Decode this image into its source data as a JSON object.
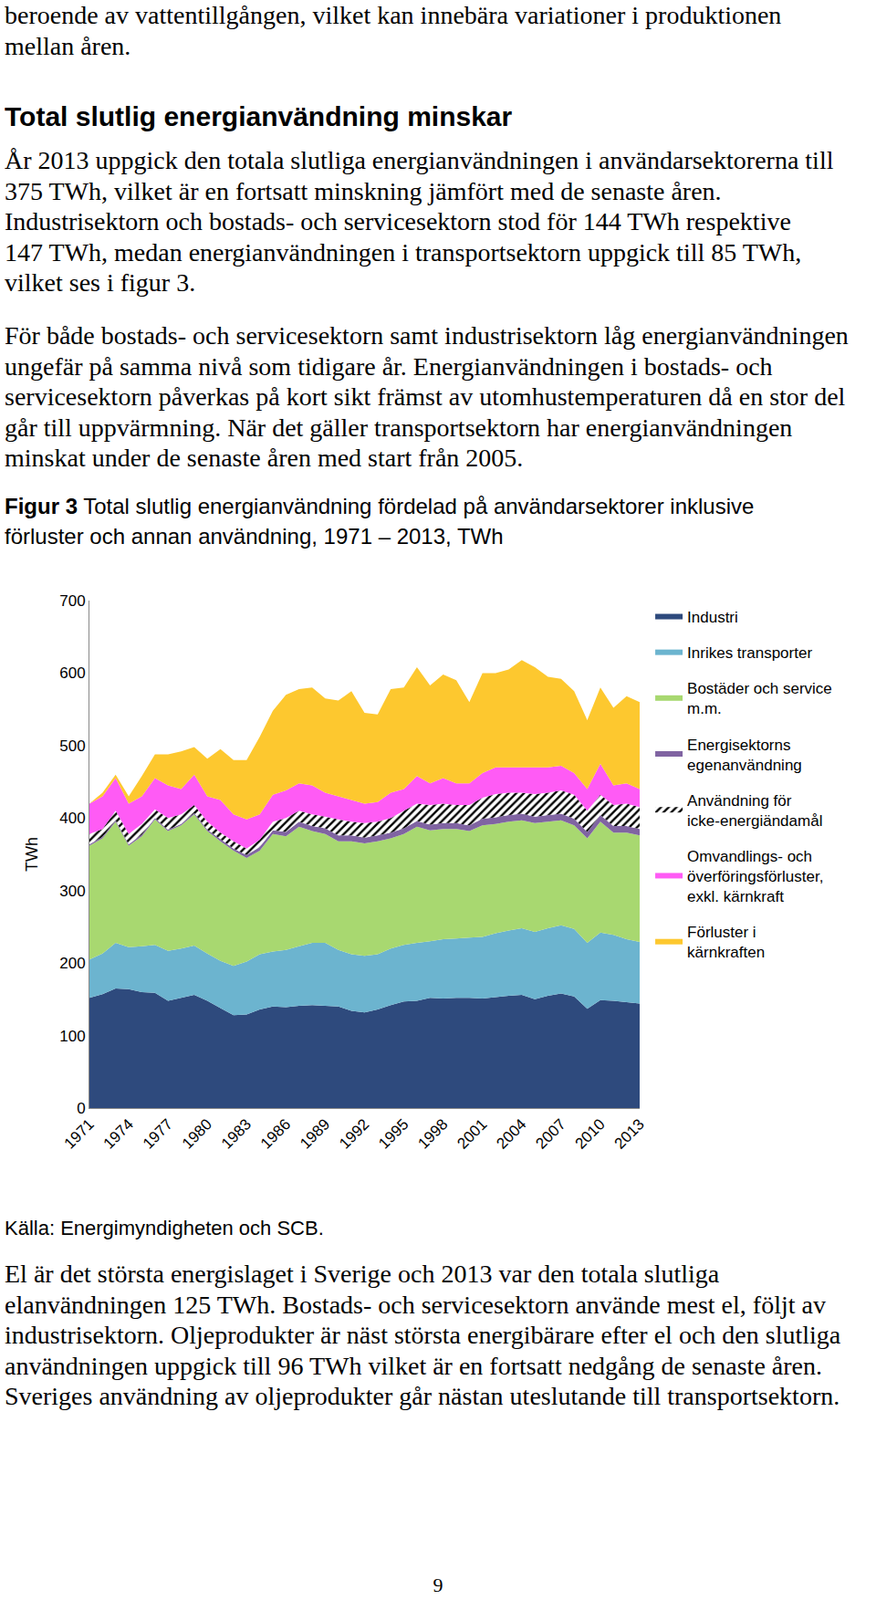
{
  "document": {
    "top_lines": [
      "beroende av vattentillgången, vilket kan innebära variationer i produktionen",
      "mellan åren."
    ],
    "heading": "Total slutlig energianvändning minskar",
    "paragraph_1": [
      "År 2013 uppgick den totala slutliga energianvändningen i användarsektorerna till",
      "375 TWh, vilket är en fortsatt minskning jämfört med de senaste åren.",
      "Industrisektorn och bostads- och servicesektorn stod för 144 TWh respektive",
      "147 TWh, medan energianvändningen i transportsektorn uppgick till 85 TWh,",
      "vilket ses i figur 3."
    ],
    "paragraph_2": [
      "För både bostads- och servicesektorn samt industrisektorn låg energianvändningen",
      "ungefär på samma nivå som tidigare år. Energianvändningen i bostads- och",
      "servicesektorn påverkas på kort sikt främst av utomhustemperaturen då en stor del",
      "går till uppvärmning. När det gäller transportsektorn har energianvändningen",
      "minskat under de senaste åren med start från 2005."
    ],
    "caption": {
      "label": "Figur 3",
      "lines": [
        "Total slutlig energianvändning fördelad på användarsektorer inklusive",
        "förluster och annan användning, 1971 – 2013, TWh"
      ]
    },
    "source": "Källa: Energimyndigheten och SCB.",
    "paragraph_3": [
      "El är det största energislaget i Sverige och 2013 var den totala slutliga",
      "elanvändningen 125 TWh. Bostads- och servicesektorn använde mest el, följt av",
      "industrisektorn. Oljeprodukter är näst största energibärare efter el och den slutliga",
      "användningen uppgick till 96 TWh vilket är en fortsatt nedgång de senaste åren.",
      "Sveriges användning av oljeprodukter går nästan uteslutande till transportsektorn."
    ],
    "page_number": "9"
  },
  "chart_data": {
    "type": "area",
    "stacked": true,
    "grid": false,
    "legend": "right",
    "ylabel": "TWh",
    "xlim": [
      1971,
      2013
    ],
    "xticks": [
      1971,
      1974,
      1977,
      1980,
      1983,
      1986,
      1989,
      1992,
      1995,
      1998,
      2001,
      2004,
      2007,
      2010,
      2013
    ],
    "ylim": [
      0,
      700
    ],
    "yticks": [
      0,
      100,
      200,
      300,
      400,
      500,
      600,
      700
    ],
    "x": [
      1971,
      1972,
      1973,
      1974,
      1975,
      1976,
      1977,
      1978,
      1979,
      1980,
      1981,
      1982,
      1983,
      1984,
      1985,
      1986,
      1987,
      1988,
      1989,
      1990,
      1991,
      1992,
      1993,
      1994,
      1995,
      1996,
      1997,
      1998,
      1999,
      2000,
      2001,
      2002,
      2003,
      2004,
      2005,
      2006,
      2007,
      2008,
      2009,
      2010,
      2011,
      2012,
      2013
    ],
    "series": [
      {
        "name": "Industri",
        "color": "#2e4a7d",
        "values": [
          152,
          157,
          165,
          164,
          160,
          159,
          148,
          152,
          156,
          148,
          138,
          128,
          129,
          136,
          140,
          139,
          141,
          142,
          141,
          140,
          134,
          132,
          136,
          142,
          147,
          148,
          152,
          151,
          152,
          152,
          151,
          153,
          155,
          156,
          150,
          155,
          158,
          154,
          137,
          149,
          148,
          146,
          144
        ]
      },
      {
        "name": "Inrikes transporter",
        "color": "#6cb4cf",
        "values": [
          53,
          56,
          63,
          58,
          63,
          66,
          69,
          68,
          68,
          65,
          65,
          68,
          73,
          76,
          76,
          79,
          82,
          86,
          87,
          78,
          78,
          78,
          76,
          78,
          78,
          80,
          78,
          82,
          82,
          83,
          85,
          88,
          90,
          92,
          93,
          93,
          94,
          93,
          91,
          93,
          91,
          87,
          85
        ]
      },
      {
        "name": "Bostäder och service m.m.",
        "color": "#a8d870",
        "values": [
          157,
          159,
          167,
          140,
          152,
          173,
          165,
          170,
          181,
          169,
          165,
          159,
          143,
          143,
          162,
          157,
          165,
          154,
          150,
          150,
          156,
          155,
          156,
          152,
          153,
          160,
          153,
          152,
          151,
          147,
          154,
          151,
          150,
          149,
          150,
          147,
          145,
          143,
          144,
          153,
          141,
          147,
          147
        ]
      },
      {
        "name": "Energisektorns egenanvändning",
        "color": "#8064a2",
        "values": [
          2,
          2,
          2,
          2,
          2,
          2,
          2,
          2,
          2,
          2,
          3,
          3,
          4,
          5,
          5,
          6,
          7,
          7,
          8,
          8,
          8,
          8,
          8,
          8,
          8,
          8,
          8,
          8,
          8,
          8,
          9,
          9,
          9,
          9,
          9,
          9,
          9,
          9,
          9,
          9,
          9,
          9,
          9
        ]
      },
      {
        "name": "Användning för icke-energiändamål",
        "color": "#000000",
        "marker": "hatched",
        "values": [
          14,
          11,
          13,
          14,
          15,
          12,
          16,
          13,
          11,
          11,
          9,
          10,
          9,
          10,
          12,
          19,
          15,
          16,
          16,
          22,
          19,
          20,
          19,
          20,
          24,
          24,
          27,
          27,
          25,
          28,
          29,
          32,
          31,
          29,
          31,
          31,
          32,
          33,
          29,
          28,
          29,
          31,
          30
        ]
      },
      {
        "name": "Omvandlings- och överföringsförluster, exkl. kärnkraft",
        "color": "#ff5bf5",
        "values": [
          42,
          45,
          45,
          42,
          38,
          43,
          45,
          35,
          42,
          35,
          45,
          37,
          40,
          35,
          37,
          38,
          38,
          40,
          33,
          32,
          30,
          27,
          27,
          35,
          30,
          38,
          30,
          35,
          30,
          30,
          34,
          37,
          35,
          35,
          37,
          35,
          34,
          30,
          30,
          43,
          27,
          28,
          25
        ]
      },
      {
        "name": "Förluster i kärnkraften",
        "color": "#fdc82f",
        "values": [
          0,
          5,
          5,
          10,
          28,
          33,
          43,
          52,
          38,
          52,
          70,
          75,
          82,
          107,
          116,
          132,
          130,
          135,
          130,
          132,
          150,
          125,
          121,
          143,
          140,
          150,
          135,
          143,
          142,
          112,
          138,
          130,
          135,
          148,
          138,
          125,
          120,
          113,
          95,
          105,
          107,
          120,
          120
        ]
      }
    ]
  }
}
